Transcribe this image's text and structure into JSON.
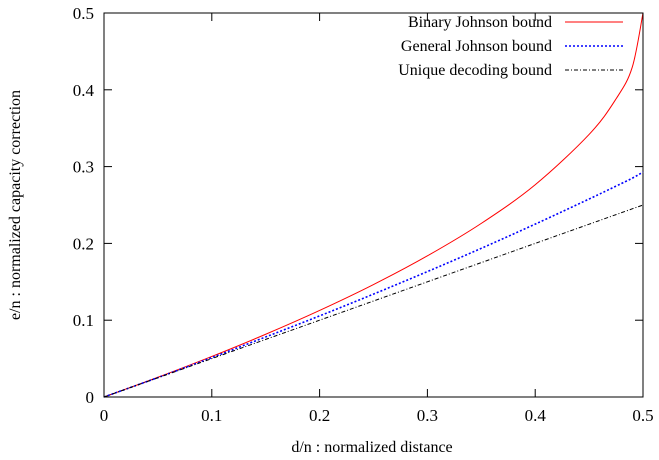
{
  "chart_data": {
    "type": "line",
    "xlabel": "d/n : normalized distance",
    "ylabel": "e/n : normalized capacity correction",
    "xlim": [
      0,
      0.5
    ],
    "ylim": [
      0,
      0.5
    ],
    "x_ticks": [
      "0",
      "0.1",
      "0.2",
      "0.3",
      "0.4",
      "0.5"
    ],
    "y_ticks": [
      "0",
      "0.1",
      "0.2",
      "0.3",
      "0.4",
      "0.5"
    ],
    "x_tick_values": [
      0,
      0.1,
      0.2,
      0.3,
      0.4,
      0.5
    ],
    "y_tick_values": [
      0,
      0.1,
      0.2,
      0.3,
      0.4,
      0.5
    ],
    "grid": false,
    "legend_position": "top-right",
    "x": [
      0,
      0.05,
      0.1,
      0.15,
      0.2,
      0.25,
      0.3,
      0.35,
      0.4,
      0.45,
      0.475,
      0.49,
      0.5
    ],
    "series": [
      {
        "name": "Binary Johnson bound",
        "color": "#ff0000",
        "dash": "solid",
        "values": [
          0,
          0.0257,
          0.0528,
          0.0817,
          0.1127,
          0.1464,
          0.1838,
          0.2261,
          0.2764,
          0.3419,
          0.3882,
          0.4293,
          0.5
        ]
      },
      {
        "name": "General Johnson bound",
        "color": "#0000ff",
        "dash": "dotted",
        "values": [
          0,
          0.0253,
          0.0513,
          0.0782,
          0.1056,
          0.134,
          0.1633,
          0.1936,
          0.2251,
          0.2578,
          0.2746,
          0.2849,
          0.2929
        ]
      },
      {
        "name": "Unique decoding bound",
        "color": "#000000",
        "dash": "dash-dot",
        "values": [
          0,
          0.025,
          0.05,
          0.075,
          0.1,
          0.125,
          0.15,
          0.175,
          0.2,
          0.225,
          0.2375,
          0.245,
          0.25
        ]
      }
    ]
  }
}
